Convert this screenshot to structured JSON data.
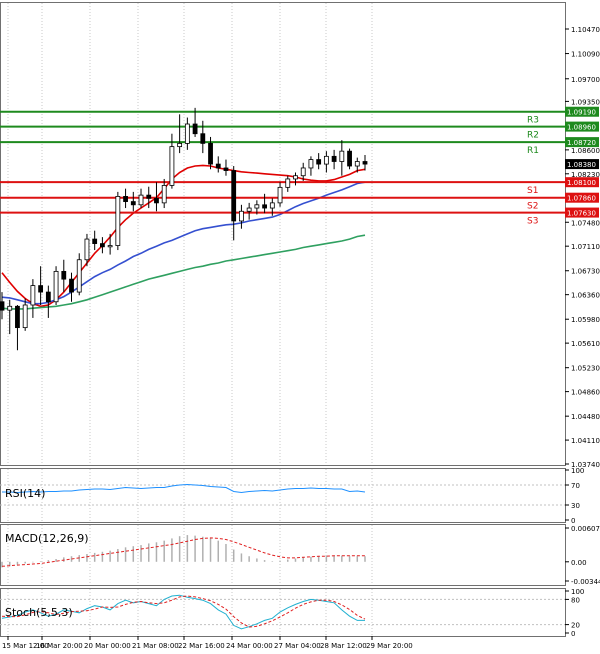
{
  "chart_data": {
    "type": "candlestick",
    "main": {
      "yaxis_ticks": [
        "1.10470",
        "1.10090",
        "1.09700",
        "1.09350",
        "1.08600",
        "1.08230",
        "1.07480",
        "1.07110",
        "1.06730",
        "1.06360",
        "1.05980",
        "1.05610",
        "1.05230",
        "1.04860",
        "1.04480",
        "1.04110",
        "1.03740"
      ],
      "ylim": [
        1.0374,
        1.1085
      ],
      "levels": [
        {
          "name": "R3",
          "value": 1.0919,
          "label": "1.09190",
          "color": "#1e8a1e"
        },
        {
          "name": "R2",
          "value": 1.0896,
          "label": "1.08960",
          "color": "#1e8a1e"
        },
        {
          "name": "R1",
          "value": 1.0872,
          "label": "1.08720",
          "color": "#1e8a1e"
        },
        {
          "name": "S1",
          "value": 1.081,
          "label": "1.08100",
          "color": "#dd1111"
        },
        {
          "name": "S2",
          "value": 1.0786,
          "label": "1.07860",
          "color": "#dd1111"
        },
        {
          "name": "S3",
          "value": 1.0763,
          "label": "1.07630",
          "color": "#dd1111"
        }
      ],
      "current_price": "1.08380",
      "candles": [
        [
          1.0625,
          1.064,
          1.0598,
          1.0612
        ],
        [
          1.0612,
          1.0628,
          1.0575,
          1.0618
        ],
        [
          1.0618,
          1.062,
          1.055,
          1.0585
        ],
        [
          1.0585,
          1.063,
          1.058,
          1.062
        ],
        [
          1.062,
          1.066,
          1.06,
          1.065
        ],
        [
          1.065,
          1.068,
          1.062,
          1.064
        ],
        [
          1.064,
          1.065,
          1.06,
          1.0625
        ],
        [
          1.0625,
          1.068,
          1.062,
          1.0672
        ],
        [
          1.0672,
          1.069,
          1.064,
          1.066
        ],
        [
          1.066,
          1.067,
          1.0625,
          1.064
        ],
        [
          1.064,
          1.07,
          1.0635,
          1.069
        ],
        [
          1.069,
          1.073,
          1.068,
          1.0722
        ],
        [
          1.0722,
          1.0735,
          1.0705,
          1.0715
        ],
        [
          1.0715,
          1.0725,
          1.07,
          1.071
        ],
        [
          1.071,
          1.073,
          1.0698,
          1.0712
        ],
        [
          1.0712,
          1.0795,
          1.0705,
          1.0788
        ],
        [
          1.0788,
          1.08,
          1.077,
          1.078
        ],
        [
          1.078,
          1.0795,
          1.0765,
          1.0775
        ],
        [
          1.0775,
          1.08,
          1.077,
          1.079
        ],
        [
          1.079,
          1.0803,
          1.077,
          1.0785
        ],
        [
          1.0785,
          1.081,
          1.0765,
          1.0778
        ],
        [
          1.0778,
          1.0815,
          1.077,
          1.0805
        ],
        [
          1.0805,
          1.0885,
          1.08,
          1.0865
        ],
        [
          1.0865,
          1.0915,
          1.0855,
          1.087
        ],
        [
          1.087,
          1.091,
          1.086,
          1.09
        ],
        [
          1.09,
          1.0925,
          1.088,
          1.0885
        ],
        [
          1.0885,
          1.0905,
          1.0855,
          1.087
        ],
        [
          1.087,
          1.088,
          1.083,
          1.0838
        ],
        [
          1.0838,
          1.085,
          1.0825,
          1.0832
        ],
        [
          1.0832,
          1.0845,
          1.082,
          1.0828
        ],
        [
          1.0828,
          1.0835,
          1.072,
          1.075
        ],
        [
          1.075,
          1.0775,
          1.0738,
          1.0765
        ],
        [
          1.0765,
          1.0778,
          1.0752,
          1.077
        ],
        [
          1.077,
          1.0782,
          1.076,
          1.0775
        ],
        [
          1.0775,
          1.0792,
          1.0762,
          1.077
        ],
        [
          1.077,
          1.0785,
          1.0758,
          1.0778
        ],
        [
          1.0778,
          1.081,
          1.0772,
          1.0802
        ],
        [
          1.0802,
          1.082,
          1.0795,
          1.0815
        ],
        [
          1.0815,
          1.0825,
          1.0805,
          1.082
        ],
        [
          1.082,
          1.084,
          1.0812,
          1.0832
        ],
        [
          1.0832,
          1.085,
          1.082,
          1.0845
        ],
        [
          1.0845,
          1.0855,
          1.083,
          1.0838
        ],
        [
          1.0838,
          1.0858,
          1.0825,
          1.085
        ],
        [
          1.085,
          1.086,
          1.083,
          1.0842
        ],
        [
          1.0842,
          1.0875,
          1.082,
          1.0858
        ],
        [
          1.0858,
          1.0862,
          1.083,
          1.0835
        ],
        [
          1.0835,
          1.0848,
          1.0825,
          1.0842
        ],
        [
          1.0842,
          1.0852,
          1.0828,
          1.0838
        ]
      ],
      "moving_averages": [
        {
          "color": "#e00000",
          "values": [
            1.067,
            1.0655,
            1.0641,
            1.063,
            1.0622,
            1.0618,
            1.062,
            1.0628,
            1.064,
            1.0655,
            1.067,
            1.0685,
            1.07,
            1.0712,
            1.0725,
            1.074,
            1.0752,
            1.0762,
            1.077,
            1.0778,
            1.0786,
            1.08,
            1.0815,
            1.0825,
            1.0832,
            1.0835,
            1.0836,
            1.0835,
            1.0832,
            1.083,
            1.0828,
            1.0826,
            1.0825,
            1.0824,
            1.0823,
            1.0822,
            1.0821,
            1.082,
            1.0818,
            1.0815,
            1.0813,
            1.0812,
            1.0812,
            1.0814,
            1.0818,
            1.0822,
            1.0828,
            1.083
          ]
        },
        {
          "color": "#3550d0",
          "values": [
            1.0632,
            1.0631,
            1.0628,
            1.0625,
            1.0622,
            1.0622,
            1.0624,
            1.0628,
            1.0633,
            1.064,
            1.0648,
            1.0656,
            1.0664,
            1.067,
            1.0675,
            1.0682,
            1.0688,
            1.0695,
            1.07,
            1.0706,
            1.0711,
            1.0716,
            1.072,
            1.0725,
            1.073,
            1.0735,
            1.0738,
            1.074,
            1.0742,
            1.0744,
            1.0745,
            1.0747,
            1.075,
            1.0752,
            1.0754,
            1.0756,
            1.076,
            1.0766,
            1.0772,
            1.0777,
            1.0781,
            1.0785,
            1.079,
            1.0794,
            1.0798,
            1.0803,
            1.0808,
            1.081
          ]
        },
        {
          "color": "#2fa060",
          "values": [
            1.0615,
            1.0614,
            1.0614,
            1.0614,
            1.0615,
            1.0616,
            1.0617,
            1.0618,
            1.062,
            1.0622,
            1.0625,
            1.0628,
            1.0632,
            1.0636,
            1.064,
            1.0644,
            1.0648,
            1.0652,
            1.0656,
            1.066,
            1.0663,
            1.0666,
            1.0669,
            1.0672,
            1.0675,
            1.0678,
            1.068,
            1.0683,
            1.0685,
            1.0688,
            1.069,
            1.0692,
            1.0694,
            1.0696,
            1.0698,
            1.07,
            1.0702,
            1.0704,
            1.0706,
            1.0709,
            1.0711,
            1.0713,
            1.0715,
            1.0717,
            1.0719,
            1.0722,
            1.0726,
            1.0728
          ]
        }
      ]
    },
    "rsi": {
      "label": "RSI(14)",
      "yaxis_ticks": [
        "100",
        "70",
        "30",
        "0"
      ],
      "values": [
        56,
        56,
        55,
        56,
        57,
        56,
        57,
        57,
        58,
        58,
        60,
        61,
        62,
        62,
        61,
        63,
        65,
        64,
        63,
        64,
        65,
        65,
        68,
        70,
        71,
        70,
        69,
        67,
        66,
        65,
        57,
        55,
        57,
        58,
        59,
        58,
        60,
        62,
        63,
        63,
        64,
        63,
        63,
        62,
        62,
        57,
        58,
        56
      ]
    },
    "macd": {
      "label": "MACD(12,26,9)",
      "yaxis_ticks": [
        "0.00607",
        "0.00",
        "-0.003449"
      ],
      "ylim": [
        -0.003449,
        0.00607
      ],
      "histogram": [
        -0.001,
        -0.0008,
        -0.0005,
        -0.0003,
        -0.0001,
        0.0001,
        0.0003,
        0.0005,
        0.0008,
        0.001,
        0.0012,
        0.0014,
        0.0016,
        0.0018,
        0.002,
        0.0023,
        0.0026,
        0.0028,
        0.003,
        0.0033,
        0.0035,
        0.0038,
        0.0042,
        0.0046,
        0.0048,
        0.0047,
        0.0045,
        0.0042,
        0.0038,
        0.0032,
        0.0022,
        0.0015,
        0.001,
        0.0006,
        0.0003,
        0.0001,
        0.0002,
        0.0004,
        0.0006,
        0.0008,
        0.0009,
        0.001,
        0.0011,
        0.0011,
        0.0011,
        0.001,
        0.001,
        0.001
      ],
      "signal": [
        -0.0008,
        -0.0007,
        -0.0006,
        -0.0005,
        -0.0004,
        -0.0003,
        -0.0001,
        0.0001,
        0.0003,
        0.0005,
        0.0007,
        0.0009,
        0.0011,
        0.0013,
        0.0015,
        0.0017,
        0.0019,
        0.0021,
        0.0023,
        0.0025,
        0.0027,
        0.0029,
        0.0031,
        0.0034,
        0.0037,
        0.004,
        0.0042,
        0.0043,
        0.0042,
        0.004,
        0.0036,
        0.0031,
        0.0026,
        0.0021,
        0.0016,
        0.0012,
        0.0009,
        0.0007,
        0.0007,
        0.0008,
        0.0009,
        0.001,
        0.001,
        0.0011,
        0.0011,
        0.0011,
        0.0011,
        0.0011
      ]
    },
    "stoch": {
      "label": "Stoch(5,5,3)",
      "yaxis_ticks": [
        "100",
        "80",
        "20",
        "0"
      ],
      "main": [
        35,
        38,
        42,
        50,
        55,
        48,
        40,
        45,
        55,
        52,
        48,
        58,
        65,
        62,
        55,
        70,
        78,
        72,
        75,
        70,
        65,
        80,
        88,
        90,
        85,
        82,
        78,
        70,
        55,
        45,
        18,
        10,
        15,
        22,
        30,
        35,
        50,
        60,
        68,
        75,
        80,
        78,
        75,
        72,
        55,
        40,
        30,
        30
      ],
      "signal": [
        40,
        39,
        39,
        43,
        49,
        51,
        48,
        44,
        47,
        51,
        52,
        53,
        57,
        62,
        61,
        62,
        68,
        73,
        75,
        72,
        70,
        72,
        78,
        86,
        88,
        86,
        82,
        77,
        68,
        57,
        39,
        24,
        14,
        16,
        22,
        29,
        38,
        48,
        59,
        68,
        74,
        78,
        78,
        75,
        67,
        56,
        42,
        33
      ]
    },
    "xaxis_labels": [
      "15 Mar 12:00",
      "16 Mar 20:00",
      "20 Mar 00:00",
      "21 Mar 08:00",
      "22 Mar 16:00",
      "24 Mar 00:00",
      "27 Mar 04:00",
      "28 Mar 12:00",
      "29 Mar 20:00"
    ]
  }
}
